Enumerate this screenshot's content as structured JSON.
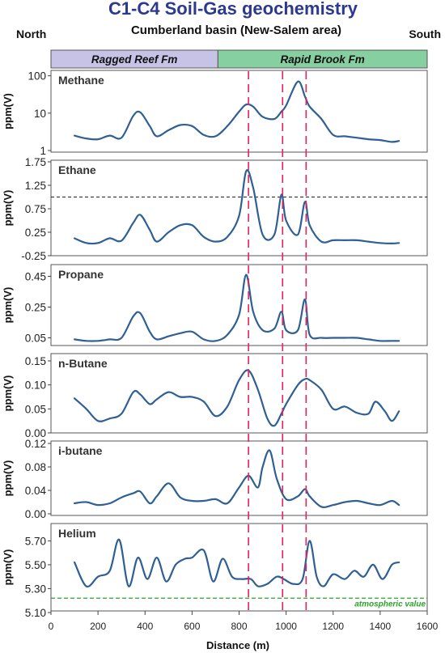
{
  "header": {
    "title": "C1-C4 Soil-Gas geochemistry",
    "subtitle": "Cumberland basin (New-Salem area)",
    "left_direction": "North",
    "right_direction": "South"
  },
  "formations": [
    {
      "name": "Ragged Reef Fm",
      "from": 0,
      "to": 710,
      "color": "#c7c3e6"
    },
    {
      "name": "Rapid Brook Fm",
      "from": 710,
      "to": 1600,
      "color": "#86cfa0"
    }
  ],
  "colors": {
    "series": "#2f5f94",
    "markers": "#e0245e",
    "atmospheric": "#2aa52a"
  },
  "chart_data": [
    {
      "type": "line",
      "name": "Methane",
      "scale": "log",
      "ylabel": "ppm(V)",
      "ylim": [
        1,
        120
      ],
      "yticks": [
        1,
        10,
        100
      ],
      "ytick_labels": [
        "1",
        "10",
        "100"
      ],
      "x": [
        100,
        150,
        200,
        250,
        300,
        350,
        380,
        420,
        450,
        500,
        550,
        600,
        650,
        700,
        750,
        800,
        830,
        860,
        900,
        950,
        980,
        1000,
        1050,
        1080,
        1100,
        1150,
        1200,
        1250,
        1300,
        1350,
        1400,
        1450,
        1480
      ],
      "y": [
        2.5,
        2.1,
        2.0,
        2.5,
        2.2,
        8.5,
        10.5,
        4.5,
        2.4,
        3.5,
        4.8,
        4.5,
        2.6,
        2.4,
        4.5,
        11,
        17,
        15,
        8,
        7,
        11,
        16,
        70,
        28,
        15,
        7,
        2.6,
        2.4,
        2.2,
        2.0,
        1.9,
        1.7,
        1.8
      ]
    },
    {
      "type": "line",
      "name": "Ethane",
      "ylabel": "ppm(V)",
      "ylim": [
        -0.25,
        1.75
      ],
      "yticks": [
        -0.25,
        0.25,
        0.75,
        1.25,
        1.75
      ],
      "ytick_labels": [
        "-0.25",
        "0.25",
        "0.75",
        "1.25",
        "1.75"
      ],
      "threshold": 1.0,
      "x": [
        100,
        150,
        200,
        250,
        300,
        350,
        380,
        420,
        450,
        500,
        550,
        600,
        650,
        700,
        750,
        800,
        830,
        860,
        900,
        950,
        980,
        1000,
        1050,
        1080,
        1100,
        1150,
        1200,
        1250,
        1300,
        1350,
        1400,
        1450,
        1480
      ],
      "y": [
        0.12,
        0.02,
        0.02,
        0.12,
        0.07,
        0.45,
        0.62,
        0.3,
        0.05,
        0.25,
        0.4,
        0.4,
        0.15,
        0.05,
        0.15,
        0.6,
        1.55,
        1.2,
        0.2,
        0.2,
        1.05,
        0.5,
        0.2,
        0.9,
        0.4,
        0.05,
        0.08,
        0.08,
        0.08,
        0.05,
        0.02,
        0.01,
        0.02
      ]
    },
    {
      "type": "line",
      "name": "Propane",
      "ylabel": "ppm(V)",
      "ylim": [
        0,
        0.5
      ],
      "yticks": [
        0.05,
        0.25,
        0.45
      ],
      "ytick_labels": [
        "0.05",
        "0.25",
        "0.45"
      ],
      "x": [
        100,
        150,
        200,
        250,
        300,
        350,
        380,
        420,
        450,
        500,
        550,
        600,
        650,
        700,
        750,
        800,
        830,
        860,
        900,
        950,
        980,
        1000,
        1050,
        1080,
        1100,
        1150,
        1200,
        1250,
        1300,
        1350,
        1400,
        1450,
        1480
      ],
      "y": [
        0.04,
        0.03,
        0.03,
        0.04,
        0.05,
        0.19,
        0.21,
        0.09,
        0.04,
        0.06,
        0.08,
        0.09,
        0.04,
        0.03,
        0.07,
        0.2,
        0.46,
        0.22,
        0.1,
        0.11,
        0.22,
        0.1,
        0.1,
        0.3,
        0.07,
        0.05,
        0.05,
        0.05,
        0.05,
        0.04,
        0.03,
        0.03,
        0.03
      ]
    },
    {
      "type": "line",
      "name": "n-Butane",
      "ylabel": "ppm(V)",
      "ylim": [
        0,
        0.15
      ],
      "yticks": [
        0,
        0.05,
        0.1,
        0.15
      ],
      "ytick_labels": [
        "0.00",
        "0.05",
        "0.10",
        "0.15"
      ],
      "x": [
        100,
        150,
        200,
        250,
        300,
        350,
        380,
        420,
        450,
        500,
        550,
        600,
        650,
        700,
        750,
        800,
        840,
        880,
        920,
        950,
        980,
        1000,
        1050,
        1080,
        1100,
        1150,
        1200,
        1250,
        1300,
        1350,
        1380,
        1420,
        1450,
        1480
      ],
      "y": [
        0.072,
        0.05,
        0.025,
        0.03,
        0.04,
        0.085,
        0.08,
        0.06,
        0.07,
        0.085,
        0.075,
        0.075,
        0.065,
        0.035,
        0.055,
        0.11,
        0.13,
        0.09,
        0.03,
        0.015,
        0.04,
        0.06,
        0.1,
        0.112,
        0.11,
        0.09,
        0.05,
        0.055,
        0.042,
        0.04,
        0.065,
        0.045,
        0.025,
        0.045
      ]
    },
    {
      "type": "line",
      "name": "i-butane",
      "ylabel": "ppm(V)",
      "ylim": [
        0,
        0.12
      ],
      "yticks": [
        0,
        0.04,
        0.08,
        0.12
      ],
      "ytick_labels": [
        "0.00",
        "0.04",
        "0.08",
        "0.12"
      ],
      "x": [
        100,
        150,
        200,
        250,
        300,
        350,
        380,
        420,
        450,
        500,
        550,
        600,
        650,
        700,
        750,
        800,
        840,
        880,
        900,
        930,
        960,
        1000,
        1050,
        1080,
        1100,
        1150,
        1200,
        1250,
        1300,
        1350,
        1400,
        1450,
        1480
      ],
      "y": [
        0.018,
        0.02,
        0.015,
        0.018,
        0.028,
        0.035,
        0.038,
        0.018,
        0.03,
        0.052,
        0.028,
        0.022,
        0.022,
        0.025,
        0.018,
        0.045,
        0.065,
        0.045,
        0.08,
        0.108,
        0.06,
        0.025,
        0.03,
        0.042,
        0.03,
        0.012,
        0.015,
        0.02,
        0.022,
        0.018,
        0.015,
        0.022,
        0.015
      ]
    },
    {
      "type": "line",
      "name": "Helium",
      "ylabel": "ppm(V)",
      "ylim": [
        5.1,
        5.75
      ],
      "yticks": [
        5.1,
        5.3,
        5.5,
        5.7
      ],
      "ytick_labels": [
        "5.10",
        "5.30",
        "5.50",
        "5.70"
      ],
      "atmospheric_value": 5.22,
      "atmospheric_label": "atmospheric value",
      "x": [
        100,
        150,
        200,
        250,
        290,
        330,
        370,
        410,
        450,
        490,
        530,
        570,
        600,
        650,
        690,
        730,
        770,
        810,
        850,
        880,
        920,
        960,
        990,
        1030,
        1070,
        1100,
        1130,
        1160,
        1200,
        1250,
        1290,
        1330,
        1370,
        1410,
        1450,
        1480
      ],
      "y": [
        5.52,
        5.32,
        5.4,
        5.45,
        5.71,
        5.32,
        5.56,
        5.38,
        5.56,
        5.36,
        5.5,
        5.55,
        5.56,
        5.62,
        5.36,
        5.55,
        5.4,
        5.38,
        5.38,
        5.32,
        5.34,
        5.4,
        5.38,
        5.34,
        5.38,
        5.7,
        5.4,
        5.32,
        5.42,
        5.38,
        5.45,
        5.4,
        5.5,
        5.38,
        5.5,
        5.52
      ]
    }
  ],
  "shared_x_axis": {
    "xlabel": "Distance (m)",
    "xlim": [
      0,
      1600
    ],
    "ticks": [
      0,
      200,
      400,
      600,
      800,
      1000,
      1200,
      1400,
      1600
    ],
    "tick_labels": [
      "0",
      "200",
      "400",
      "600",
      "800",
      "1000",
      "1200",
      "1400",
      "1600"
    ]
  },
  "marker_lines": [
    840,
    985,
    1085
  ]
}
